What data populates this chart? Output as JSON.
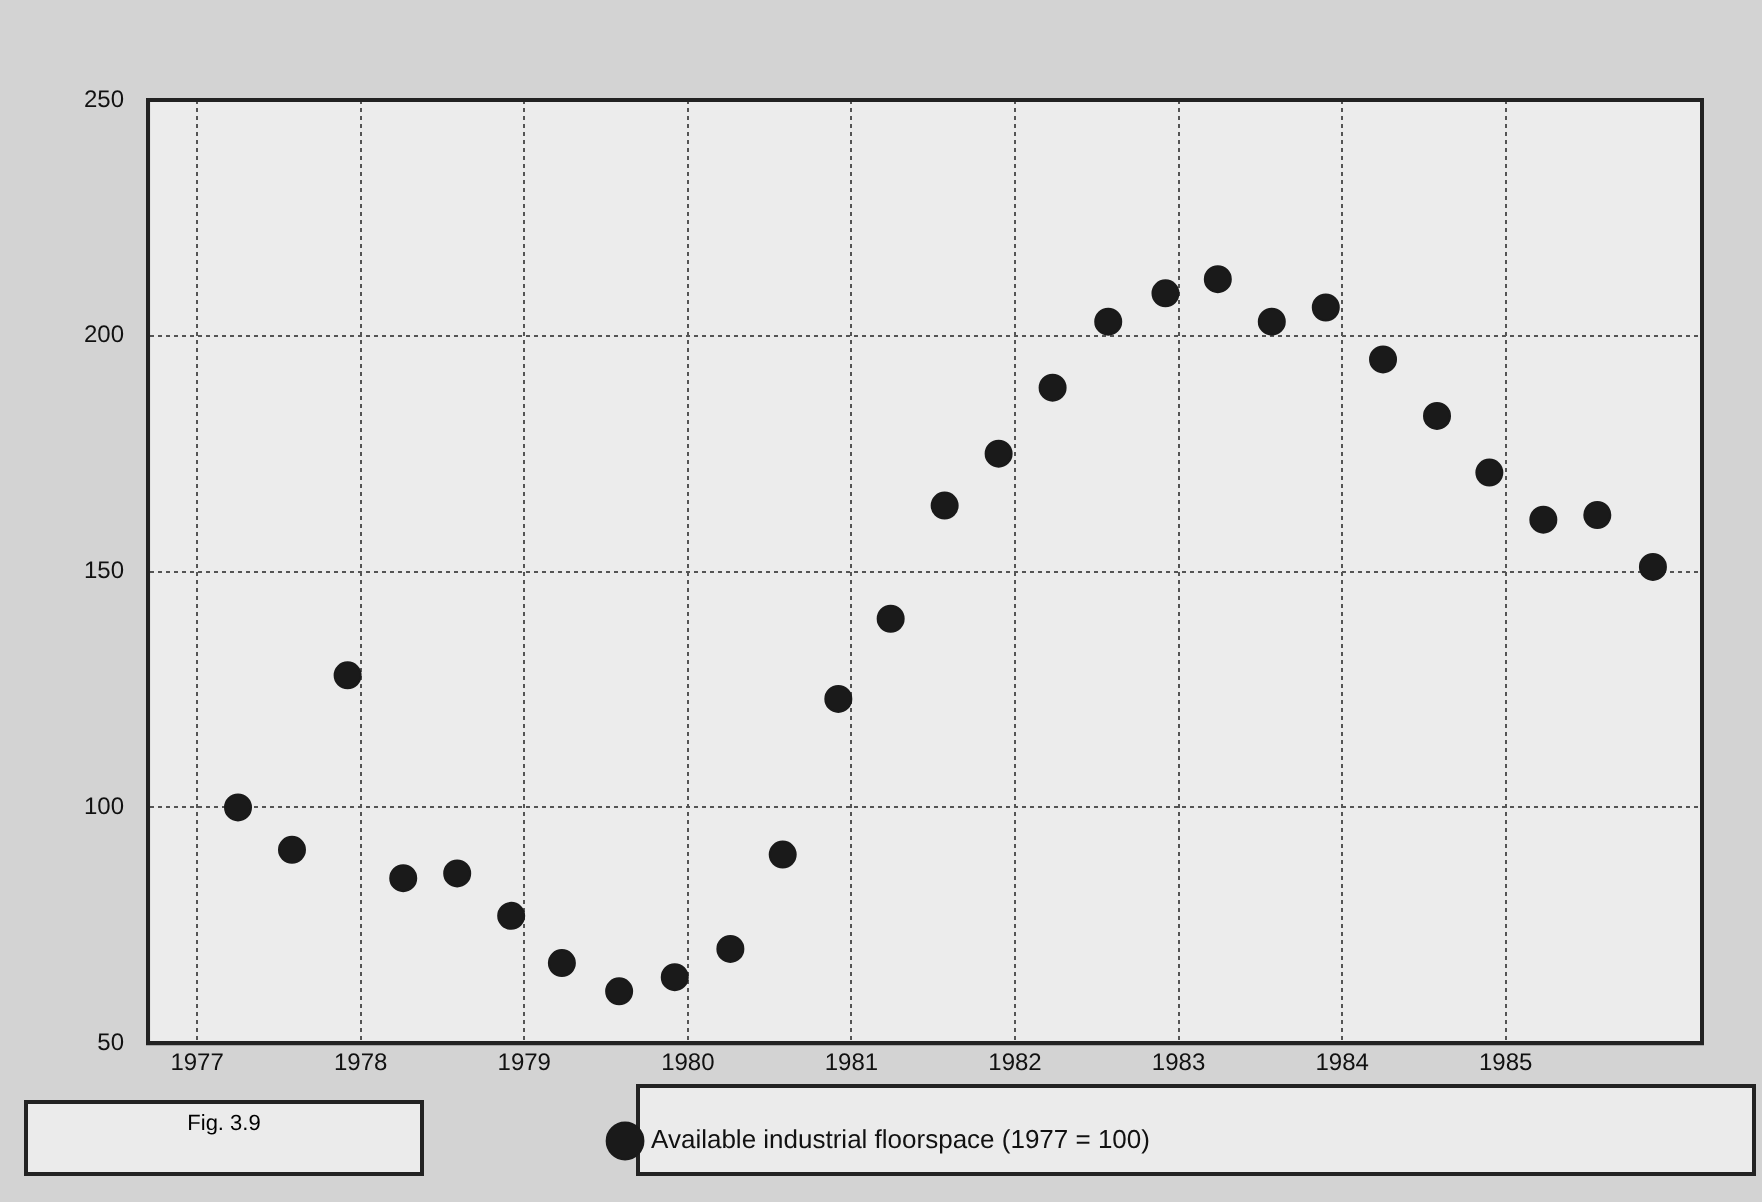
{
  "chart_data": {
    "type": "scatter",
    "x": [
      1977.25,
      1977.58,
      1977.92,
      1978.26,
      1978.59,
      1978.92,
      1979.23,
      1979.58,
      1979.92,
      1980.26,
      1980.58,
      1980.92,
      1981.24,
      1981.57,
      1981.9,
      1982.23,
      1982.57,
      1982.92,
      1983.24,
      1983.57,
      1983.9,
      1984.25,
      1984.58,
      1984.9,
      1985.23,
      1985.56,
      1985.9
    ],
    "series": [
      {
        "name": "Available industrial floorspace (1977 = 100)",
        "color": "#1a1a1a",
        "values": [
          100,
          91,
          128,
          85,
          86,
          77,
          67,
          61,
          64,
          70,
          90,
          123,
          140,
          164,
          175,
          189,
          203,
          209,
          212,
          203,
          206,
          195,
          183,
          171,
          161,
          162,
          151
        ]
      }
    ],
    "xlim": [
      1976.7,
      1986.2
    ],
    "xticks": [
      1977,
      1978,
      1979,
      1980,
      1981,
      1982,
      1983,
      1984,
      1985
    ],
    "ylim": [
      50,
      250
    ],
    "yticks": [
      50,
      100,
      150,
      200,
      250
    ],
    "grid": true,
    "legend": "bottom",
    "marker": "circle",
    "annotations": [
      "Fig. 3.9"
    ]
  }
}
